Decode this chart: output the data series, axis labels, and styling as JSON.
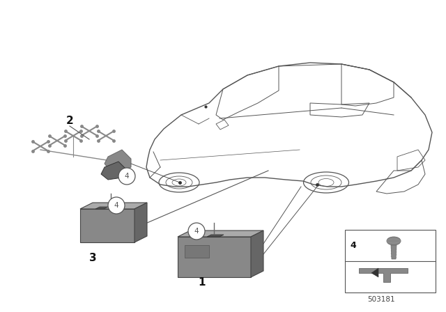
{
  "bg_color": "#ffffff",
  "line_color": "#555555",
  "dark_gray": "#666666",
  "mid_gray": "#888888",
  "light_gray": "#aaaaaa",
  "very_light_gray": "#cccccc",
  "footer_number": "503181",
  "callout_r": 0.022
}
